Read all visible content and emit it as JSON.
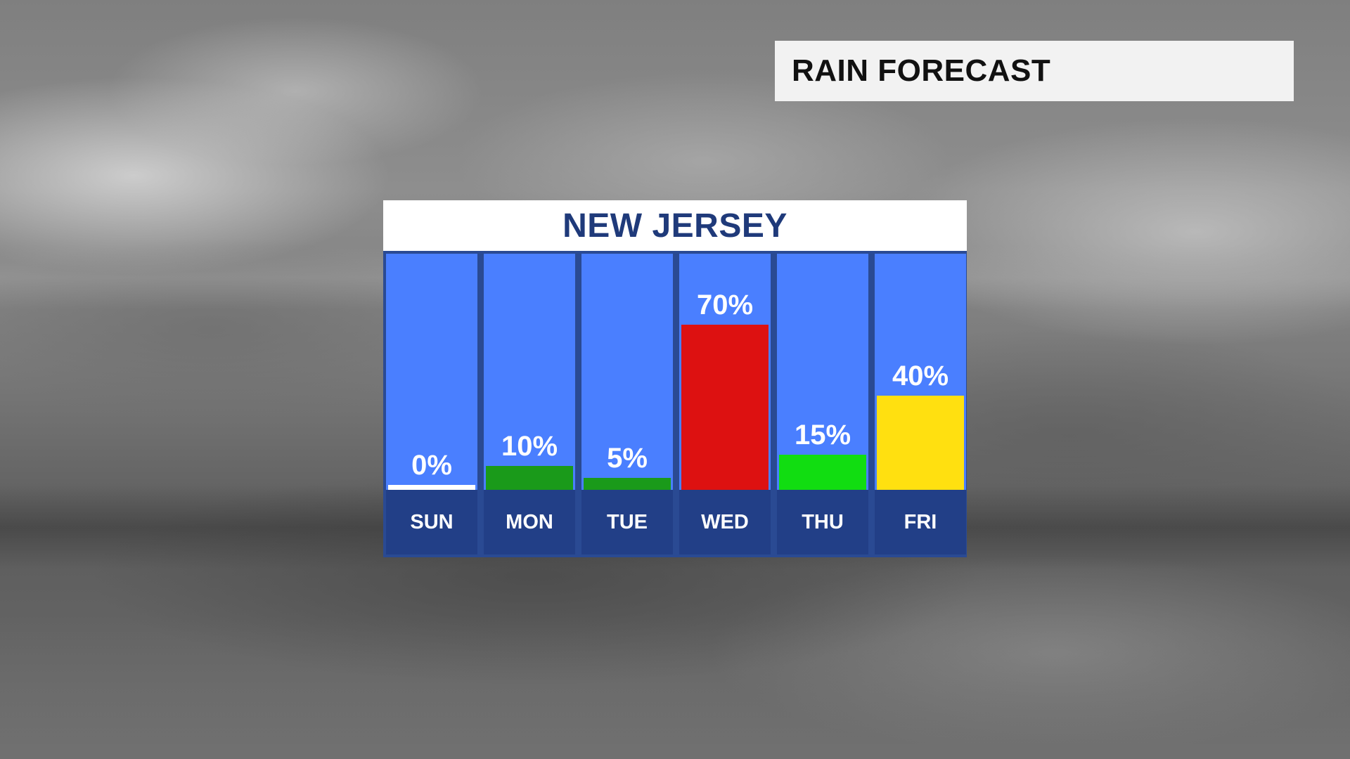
{
  "title": "RAIN FORECAST",
  "region": "NEW JERSEY",
  "colors": {
    "column_background": "#4a7fff",
    "day_label_background": "#223f87",
    "header_text": "#1f3a7a"
  },
  "chart_data": {
    "type": "bar",
    "title": "NEW JERSEY",
    "categories": [
      "SUN",
      "MON",
      "TUE",
      "WED",
      "THU",
      "FRI"
    ],
    "values": [
      0,
      10,
      5,
      70,
      15,
      40
    ],
    "value_labels": [
      "0%",
      "10%",
      "5%",
      "70%",
      "15%",
      "40%"
    ],
    "bar_colors": [
      "#ffffff",
      "#1a9a1a",
      "#1a9a1a",
      "#dd1111",
      "#11dd11",
      "#ffe010"
    ],
    "ylim": [
      0,
      100
    ],
    "grid": false,
    "legend": "none"
  }
}
